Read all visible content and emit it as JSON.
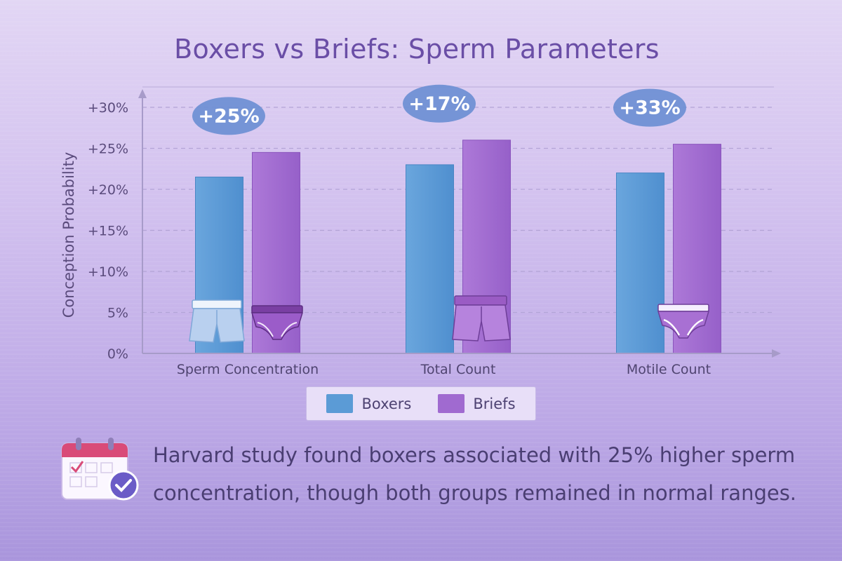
{
  "chart_data": {
    "type": "bar",
    "title": "Boxers vs Briefs: Sperm Parameters",
    "ylabel": "Conception Probability",
    "xlabel": "",
    "categories": [
      "Sperm Concentration",
      "Total Count",
      "Motile Count"
    ],
    "series": [
      {
        "name": "Boxers",
        "values": [
          21.5,
          23,
          22
        ],
        "color": "#5b9bd6"
      },
      {
        "name": "Briefs",
        "values": [
          24.5,
          26,
          25.5
        ],
        "color": "#a06ad0"
      }
    ],
    "ylim": [
      0,
      30
    ],
    "yticks": [
      "0%",
      "5%",
      "+10%",
      "+15%",
      "+20%",
      "+25%",
      "+30%"
    ],
    "annotations": [
      "+25%",
      "+17%",
      "+33%"
    ],
    "grid": true,
    "legend_position": "bottom-center"
  },
  "note": {
    "line1": "Harvard study found boxers associated with 25% higher sperm",
    "line2": "concentration, though both groups remained in normal ranges."
  },
  "icons": [
    "boxers-icon",
    "briefs-icon",
    "calendar-check-icon"
  ]
}
